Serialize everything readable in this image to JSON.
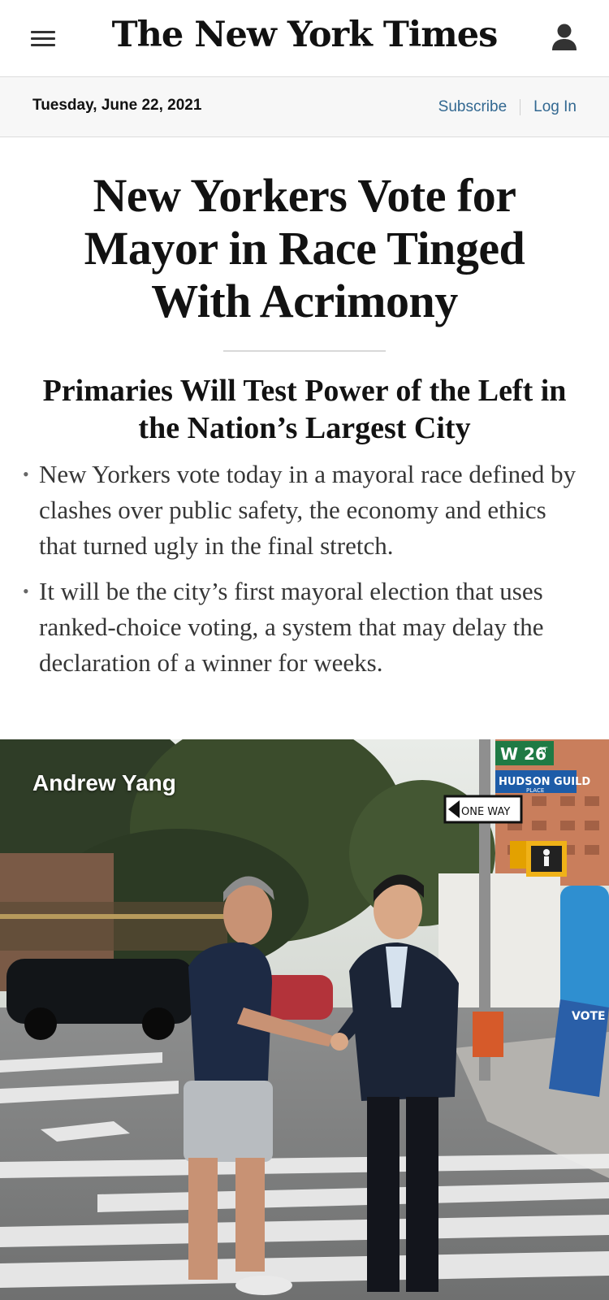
{
  "header": {
    "menu_icon": "hamburger-menu-icon",
    "masthead": "The New York Times",
    "account_icon": "user-icon"
  },
  "datebar": {
    "date": "Tuesday, June 22, 2021",
    "subscribe": "Subscribe",
    "login": "Log In"
  },
  "article": {
    "headline": "New Yorkers Vote for Mayor in Race Tinged With Acrimony",
    "subheadline": "Primaries Will Test Power of the Left in the Nation’s Largest City",
    "summary": [
      "New Yorkers vote today in a mayoral race defined by clashes over public safety, the economy and ethics that turned ugly in the final stretch.",
      "It will be the city’s first mayoral election that uses ranked-choice voting, a system that may delay the declaration of a winner for weeks."
    ],
    "photo": {
      "label": "Andrew Yang",
      "sign_street": "W 26",
      "sign_street_suffix": "ST",
      "sign_place": "HUDSON GUILD",
      "sign_place_sub": "PLACE",
      "sign_oneway": "ONE WAY",
      "poster_text": "VOTE"
    }
  },
  "colors": {
    "link": "#326891",
    "text": "#121212",
    "datebar_bg": "#f7f7f7"
  }
}
